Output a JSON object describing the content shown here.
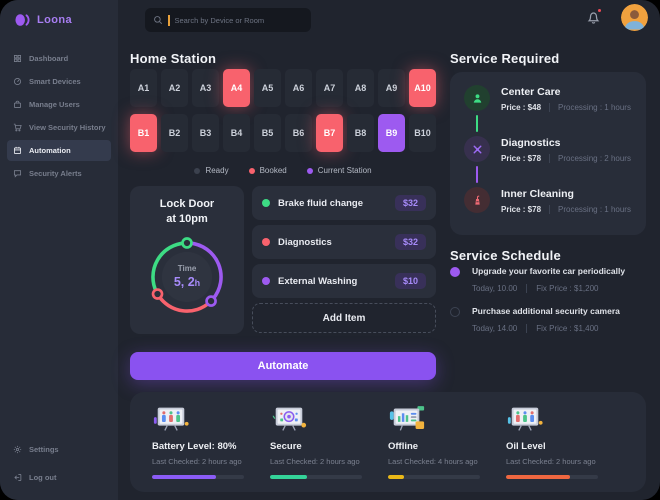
{
  "app": {
    "name": "Loona"
  },
  "colors": {
    "accent_purple": "#9d5af0",
    "booked_red": "#f8626d",
    "ready_dark": "#3b414e",
    "green": "#3ddc84"
  },
  "sidebar": {
    "items": [
      {
        "label": "Dashboard",
        "icon": "grid-icon"
      },
      {
        "label": "Smart Devices",
        "icon": "gauge-icon"
      },
      {
        "label": "Manage Users",
        "icon": "briefcase-icon"
      },
      {
        "label": "View Security History",
        "icon": "cart-icon"
      },
      {
        "label": "Automation",
        "icon": "calendar-icon",
        "state": "active"
      },
      {
        "label": "Security Alerts",
        "icon": "chat-icon"
      }
    ],
    "footer_items": [
      {
        "label": "Settings",
        "icon": "gear-icon"
      },
      {
        "label": "Log out",
        "icon": "logout-icon"
      }
    ]
  },
  "topbar": {
    "search_placeholder": "Search by Device or Room"
  },
  "home_station": {
    "title": "Home Station",
    "cells": [
      {
        "label": "A1",
        "state": "ready"
      },
      {
        "label": "A2",
        "state": "ready"
      },
      {
        "label": "A3",
        "state": "ready"
      },
      {
        "label": "A4",
        "state": "booked"
      },
      {
        "label": "A5",
        "state": "ready"
      },
      {
        "label": "A6",
        "state": "ready"
      },
      {
        "label": "A7",
        "state": "ready"
      },
      {
        "label": "A8",
        "state": "ready"
      },
      {
        "label": "A9",
        "state": "ready"
      },
      {
        "label": "A10",
        "state": "booked"
      },
      {
        "label": "B1",
        "state": "booked"
      },
      {
        "label": "B2",
        "state": "ready"
      },
      {
        "label": "B3",
        "state": "ready"
      },
      {
        "label": "B4",
        "state": "ready"
      },
      {
        "label": "B5",
        "state": "ready"
      },
      {
        "label": "B6",
        "state": "ready"
      },
      {
        "label": "B7",
        "state": "booked"
      },
      {
        "label": "B8",
        "state": "ready"
      },
      {
        "label": "B9",
        "state": "current"
      },
      {
        "label": "B10",
        "state": "ready"
      }
    ],
    "legend": [
      {
        "label": "Ready",
        "state": "ready"
      },
      {
        "label": "Booked",
        "state": "booked"
      },
      {
        "label": "Current Station",
        "state": "current"
      }
    ]
  },
  "lock_card": {
    "title_line1": "Lock Door",
    "title_line2": "at 10pm",
    "time_label": "Time",
    "time_value": "5, 2",
    "time_unit": "h"
  },
  "service_list": {
    "items": [
      {
        "label": "Brake fluid change",
        "price": "$32",
        "dot_color": "#3ddc84"
      },
      {
        "label": "Diagnostics",
        "price": "$32",
        "dot_color": "#f8626d"
      },
      {
        "label": "External Washing",
        "price": "$10",
        "dot_color": "#9d5af0"
      }
    ],
    "add_label": "Add Item"
  },
  "automate_label": "Automate",
  "service_required": {
    "title": "Service Required",
    "items": [
      {
        "name": "Center Care",
        "price": "Price : $48",
        "processing": "Processing : 1 hours",
        "icon": "person-icon",
        "color": "green",
        "connector_color": "#3ddc84"
      },
      {
        "name": "Diagnostics",
        "price": "Price : $78",
        "processing": "Processing : 2 hours",
        "icon": "jack-icon",
        "color": "purple",
        "connector_color": "#9d5af0"
      },
      {
        "name": "Inner Cleaning",
        "price": "Price : $78",
        "processing": "Processing : 1 hours",
        "icon": "cleaner-icon",
        "color": "red"
      }
    ]
  },
  "service_schedule": {
    "title": "Service Schedule",
    "items": [
      {
        "text": "Upgrade your favorite car periodically",
        "time": "Today, 10.00",
        "price": "Fix Price : $1,200",
        "radio": "on"
      },
      {
        "text": "Purchase additional security camera",
        "time": "Today, 14.00",
        "price": "Fix Price : $1,400",
        "radio": "off"
      }
    ]
  },
  "status_panel": {
    "cards": [
      {
        "title": "Battery Level: 80%",
        "subtitle": "Last Checked: 2 hours ago",
        "icon": "monitor-people-illustration",
        "bar_color": "#8b5cf6",
        "bar_pct": 70
      },
      {
        "title": "Secure",
        "subtitle": "Last Checked: 2 hours ago",
        "icon": "monitor-lock-illustration",
        "bar_color": "#34d399",
        "bar_pct": 40
      },
      {
        "title": "Offline",
        "subtitle": "Last Checked: 4 hours ago",
        "icon": "monitor-chart-illustration",
        "bar_color": "#eab818",
        "bar_pct": 17
      },
      {
        "title": "Oil Level",
        "subtitle": "Last Checked: 2 hours ago",
        "icon": "monitor-people-illustration",
        "bar_color": "#ef6740",
        "bar_pct": 70
      }
    ]
  }
}
